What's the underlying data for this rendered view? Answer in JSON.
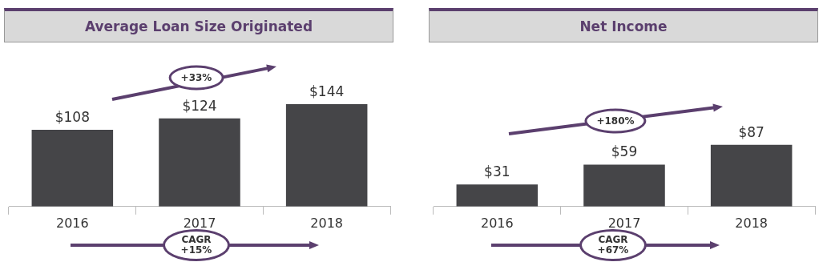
{
  "chart_data": [
    {
      "type": "bar",
      "title": "Average Loan Size Originated",
      "categories": [
        "2016",
        "2017",
        "2018"
      ],
      "values": [
        108,
        124,
        144
      ],
      "color": "#454548",
      "value_labels": [
        "$108",
        "$124",
        "$144"
      ],
      "annotations": [
        "+33%",
        "CAGR +15%"
      ]
    },
    {
      "type": "bar",
      "title": "Net Income",
      "categories": [
        "2016",
        "2017",
        "2018"
      ],
      "values": [
        31,
        59,
        87
      ],
      "color": "#454548",
      "value_labels": [
        "$31",
        "$59",
        "$87"
      ],
      "annotations": [
        "+180%",
        "CAGR +67%"
      ]
    }
  ]
}
